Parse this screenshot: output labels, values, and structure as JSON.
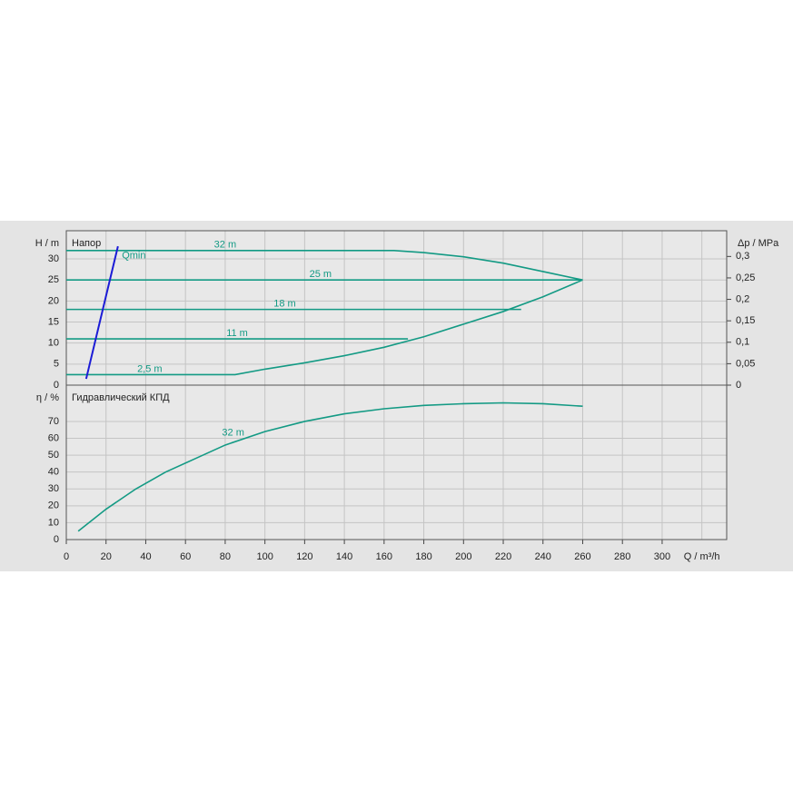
{
  "chart_data": [
    {
      "type": "line",
      "title": "Напор",
      "ylabel": "H / m",
      "y2label": "Δp / MPa",
      "xlim": [
        0,
        332.5
      ],
      "xgrid": [
        0,
        20,
        40,
        60,
        80,
        100,
        120,
        140,
        160,
        180,
        200,
        220,
        240,
        260,
        280,
        300,
        320
      ],
      "ylim": [
        0,
        36.7
      ],
      "yticks": [
        0,
        5,
        10,
        15,
        20,
        25,
        30
      ],
      "y2lim": [
        0,
        0.36
      ],
      "y2ticks": [
        0,
        {
          "value": 0.05,
          "label": "0,05"
        },
        {
          "value": 0.1,
          "label": "0,1"
        },
        {
          "value": 0.15,
          "label": "0,15"
        },
        {
          "value": 0.2,
          "label": "0,2"
        },
        {
          "value": 0.25,
          "label": "0,25"
        },
        {
          "value": 0.3,
          "label": "0,3"
        }
      ],
      "grid": true,
      "series": [
        {
          "name": "32 m",
          "color": "#139a84",
          "x": [
            0,
            165,
            180,
            200,
            220,
            240,
            260
          ],
          "values": [
            32,
            32,
            31.5,
            30.5,
            29,
            27,
            25
          ]
        },
        {
          "name": "25 m",
          "color": "#139a84",
          "x": [
            0,
            260
          ],
          "values": [
            25,
            25
          ]
        },
        {
          "name": "18 m",
          "color": "#139a84",
          "x": [
            0,
            229
          ],
          "values": [
            18,
            18
          ]
        },
        {
          "name": "11 m",
          "color": "#139a84",
          "x": [
            0,
            172
          ],
          "values": [
            11,
            11
          ]
        },
        {
          "name": "2,5 m",
          "color": "#139a84",
          "x": [
            0,
            85,
            100,
            120,
            140,
            160,
            180,
            200,
            220,
            240,
            260
          ],
          "values": [
            2.5,
            2.5,
            3.8,
            5.3,
            7,
            9,
            11.5,
            14.5,
            17.5,
            21,
            25
          ]
        },
        {
          "name": "Qmin",
          "color": "#1c1cd6",
          "x": [
            10,
            26
          ],
          "values": [
            1.5,
            33
          ]
        }
      ]
    },
    {
      "type": "line",
      "title": "Гидравлический КПД",
      "ylabel": "η / %",
      "xlabel": "Q / m³/h",
      "xlim": [
        0,
        332.5
      ],
      "xgrid": [
        0,
        20,
        40,
        60,
        80,
        100,
        120,
        140,
        160,
        180,
        200,
        220,
        240,
        260,
        280,
        300,
        320
      ],
      "xticks": [
        0,
        20,
        40,
        60,
        80,
        100,
        120,
        140,
        160,
        180,
        200,
        220,
        240,
        260,
        280,
        300
      ],
      "ylim": [
        0,
        91.5
      ],
      "yticks": [
        0,
        10,
        20,
        30,
        40,
        50,
        60,
        70
      ],
      "grid": true,
      "series": [
        {
          "name": "32 m",
          "color": "#139a84",
          "x": [
            6,
            20,
            35,
            50,
            65,
            80,
            100,
            120,
            140,
            160,
            180,
            200,
            220,
            240,
            260
          ],
          "values": [
            5,
            18,
            30,
            40,
            48,
            56,
            64,
            70,
            74.5,
            77.5,
            79.5,
            80.5,
            81,
            80.5,
            79
          ]
        }
      ]
    }
  ]
}
